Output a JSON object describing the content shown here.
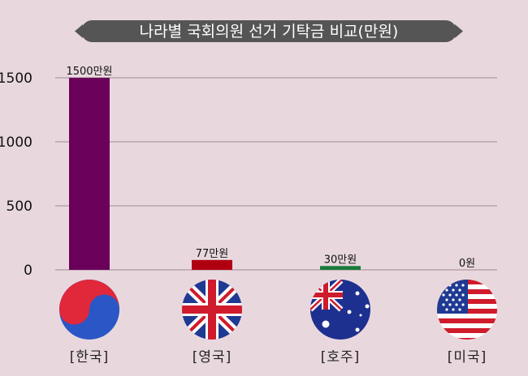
{
  "chart_data": {
    "type": "bar",
    "title": "나라별 국회의원 선거 기탁금 비교(만원)",
    "categories": [
      "[한국]",
      "[영국]",
      "[호주]",
      "[미국]"
    ],
    "values": [
      1500,
      77,
      30,
      0
    ],
    "data_labels": [
      "1500만원",
      "77만원",
      "30만원",
      "0원"
    ],
    "bar_colors": [
      "#6a005a",
      "#b00010",
      "#1a7a3a",
      "#7a1030"
    ],
    "flag_icons": [
      "korea-flag-icon",
      "uk-flag-icon",
      "australia-flag-icon",
      "usa-flag-icon"
    ],
    "yticks": [
      0,
      500,
      1000,
      1500
    ],
    "ylim": [
      0,
      1500
    ],
    "grid": true,
    "xlabel": "",
    "ylabel": ""
  }
}
